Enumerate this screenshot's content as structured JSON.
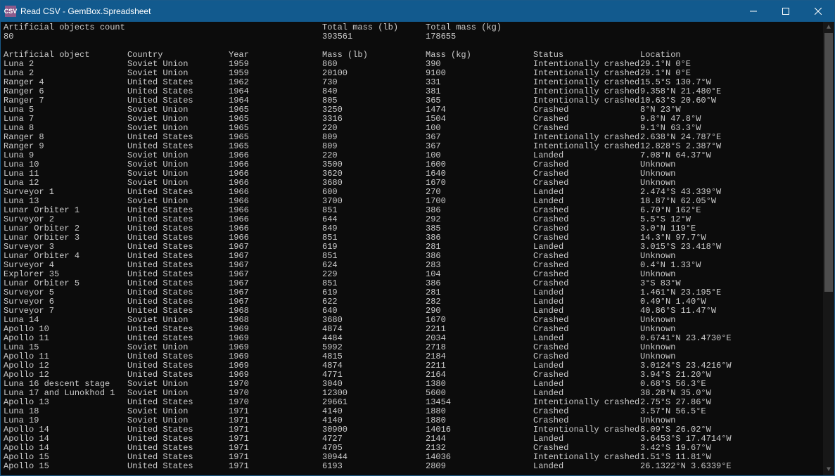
{
  "window": {
    "title": "Read CSV - GemBox.Spreadsheet",
    "icon_label": "CSV",
    "titlebar_bg": "#125a8e",
    "titlebar_fg": "#ffffff",
    "console_bg": "#0c0c0c",
    "console_fg": "#cccccc"
  },
  "summary_headers": [
    "Artificial objects count",
    "Total mass (lb)",
    "Total mass (kg)"
  ],
  "summary_values": [
    "80",
    "393561",
    "178655"
  ],
  "column_headers": [
    "Artificial object",
    "Country",
    "Year",
    "Mass (lb)",
    "Mass (kg)",
    "Status",
    "Location"
  ],
  "rows": [
    [
      "Luna 2",
      "Soviet Union",
      "1959",
      "860",
      "390",
      "Intentionally crashed",
      "29.1°N 0°E"
    ],
    [
      "Luna 2",
      "Soviet Union",
      "1959",
      "20100",
      "9100",
      "Intentionally crashed",
      "29.1°N 0°E"
    ],
    [
      "Ranger 4",
      "United States",
      "1962",
      "730",
      "331",
      "Intentionally crashed",
      "15.5°S 130.7°W"
    ],
    [
      "Ranger 6",
      "United States",
      "1964",
      "840",
      "381",
      "Intentionally crashed",
      "9.358°N 21.480°E"
    ],
    [
      "Ranger 7",
      "United States",
      "1964",
      "805",
      "365",
      "Intentionally crashed",
      "10.63°S 20.60°W"
    ],
    [
      "Luna 5",
      "Soviet Union",
      "1965",
      "3250",
      "1474",
      "Crashed",
      "8°N 23°W"
    ],
    [
      "Luna 7",
      "Soviet Union",
      "1965",
      "3316",
      "1504",
      "Crashed",
      "9.8°N 47.8°W"
    ],
    [
      "Luna 8",
      "Soviet Union",
      "1965",
      "220",
      "100",
      "Crashed",
      "9.1°N 63.3°W"
    ],
    [
      "Ranger 8",
      "United States",
      "1965",
      "809",
      "367",
      "Intentionally crashed",
      "2.638°N 24.787°E"
    ],
    [
      "Ranger 9",
      "United States",
      "1965",
      "809",
      "367",
      "Intentionally crashed",
      "12.828°S 2.387°W"
    ],
    [
      "Luna 9",
      "Soviet Union",
      "1966",
      "220",
      "100",
      "Landed",
      "7.08°N 64.37°W"
    ],
    [
      "Luna 10",
      "Soviet Union",
      "1966",
      "3500",
      "1600",
      "Crashed",
      "Unknown"
    ],
    [
      "Luna 11",
      "Soviet Union",
      "1966",
      "3620",
      "1640",
      "Crashed",
      "Unknown"
    ],
    [
      "Luna 12",
      "Soviet Union",
      "1966",
      "3680",
      "1670",
      "Crashed",
      "Unknown"
    ],
    [
      "Surveyor 1",
      "United States",
      "1966",
      "600",
      "270",
      "Landed",
      "2.474°S 43.339°W"
    ],
    [
      "Luna 13",
      "Soviet Union",
      "1966",
      "3700",
      "1700",
      "Landed",
      "18.87°N 62.05°W"
    ],
    [
      "Lunar Orbiter 1",
      "United States",
      "1966",
      "851",
      "386",
      "Crashed",
      "6.70°N 162°E"
    ],
    [
      "Surveyor 2",
      "United States",
      "1966",
      "644",
      "292",
      "Crashed",
      "5.5°S 12°W"
    ],
    [
      "Lunar Orbiter 2",
      "United States",
      "1966",
      "849",
      "385",
      "Crashed",
      "3.0°N 119°E"
    ],
    [
      "Lunar Orbiter 3",
      "United States",
      "1966",
      "851",
      "386",
      "Crashed",
      "14.3°N 97.7°W"
    ],
    [
      "Surveyor 3",
      "United States",
      "1967",
      "619",
      "281",
      "Landed",
      "3.015°S 23.418°W"
    ],
    [
      "Lunar Orbiter 4",
      "United States",
      "1967",
      "851",
      "386",
      "Crashed",
      "Unknown"
    ],
    [
      "Surveyor 4",
      "United States",
      "1967",
      "624",
      "283",
      "Crashed",
      "0.4°N 1.33°W"
    ],
    [
      "Explorer 35",
      "United States",
      "1967",
      "229",
      "104",
      "Crashed",
      "Unknown"
    ],
    [
      "Lunar Orbiter 5",
      "United States",
      "1967",
      "851",
      "386",
      "Crashed",
      "3°S 83°W"
    ],
    [
      "Surveyor 5",
      "United States",
      "1967",
      "619",
      "281",
      "Landed",
      "1.461°N 23.195°E"
    ],
    [
      "Surveyor 6",
      "United States",
      "1967",
      "622",
      "282",
      "Landed",
      "0.49°N 1.40°W"
    ],
    [
      "Surveyor 7",
      "United States",
      "1968",
      "640",
      "290",
      "Landed",
      "40.86°S 11.47°W"
    ],
    [
      "Luna 14",
      "Soviet Union",
      "1968",
      "3680",
      "1670",
      "Crashed",
      "Unknown"
    ],
    [
      "Apollo 10",
      "United States",
      "1969",
      "4874",
      "2211",
      "Crashed",
      "Unknown"
    ],
    [
      "Apollo 11",
      "United States",
      "1969",
      "4484",
      "2034",
      "Landed",
      "0.6741°N 23.4730°E"
    ],
    [
      "Luna 15",
      "Soviet Union",
      "1969",
      "5992",
      "2718",
      "Crashed",
      "Unknown"
    ],
    [
      "Apollo 11",
      "United States",
      "1969",
      "4815",
      "2184",
      "Crashed",
      "Unknown"
    ],
    [
      "Apollo 12",
      "United States",
      "1969",
      "4874",
      "2211",
      "Landed",
      "3.0124°S 23.4216°W"
    ],
    [
      "Apollo 12",
      "United States",
      "1969",
      "4771",
      "2164",
      "Crashed",
      "3.94°S 21.20°W"
    ],
    [
      "Luna 16 descent stage",
      "Soviet Union",
      "1970",
      "3040",
      "1380",
      "Landed",
      "0.68°S 56.3°E"
    ],
    [
      "Luna 17 and Lunokhod 1",
      "Soviet Union",
      "1970",
      "12300",
      "5600",
      "Landed",
      "38.28°N 35.0°W"
    ],
    [
      "Apollo 13",
      "United States",
      "1970",
      "29661",
      "13454",
      "Intentionally crashed",
      "2.75°S 27.86°W"
    ],
    [
      "Luna 18",
      "Soviet Union",
      "1971",
      "4140",
      "1880",
      "Crashed",
      "3.57°N 56.5°E"
    ],
    [
      "Luna 19",
      "Soviet Union",
      "1971",
      "4140",
      "1880",
      "Crashed",
      "Unknown"
    ],
    [
      "Apollo 14",
      "United States",
      "1971",
      "30900",
      "14016",
      "Intentionally crashed",
      "8.09°S 26.02°W"
    ],
    [
      "Apollo 14",
      "United States",
      "1971",
      "4727",
      "2144",
      "Landed",
      "3.6453°S 17.4714°W"
    ],
    [
      "Apollo 14",
      "United States",
      "1971",
      "4705",
      "2132",
      "Crashed",
      "3.42°S 19.67°W"
    ],
    [
      "Apollo 15",
      "United States",
      "1971",
      "30944",
      "14036",
      "Intentionally crashed",
      "1.51°S 11.81°W"
    ],
    [
      "Apollo 15",
      "United States",
      "1971",
      "6193",
      "2809",
      "Landed",
      "26.1322°N 3.6339°E"
    ]
  ]
}
